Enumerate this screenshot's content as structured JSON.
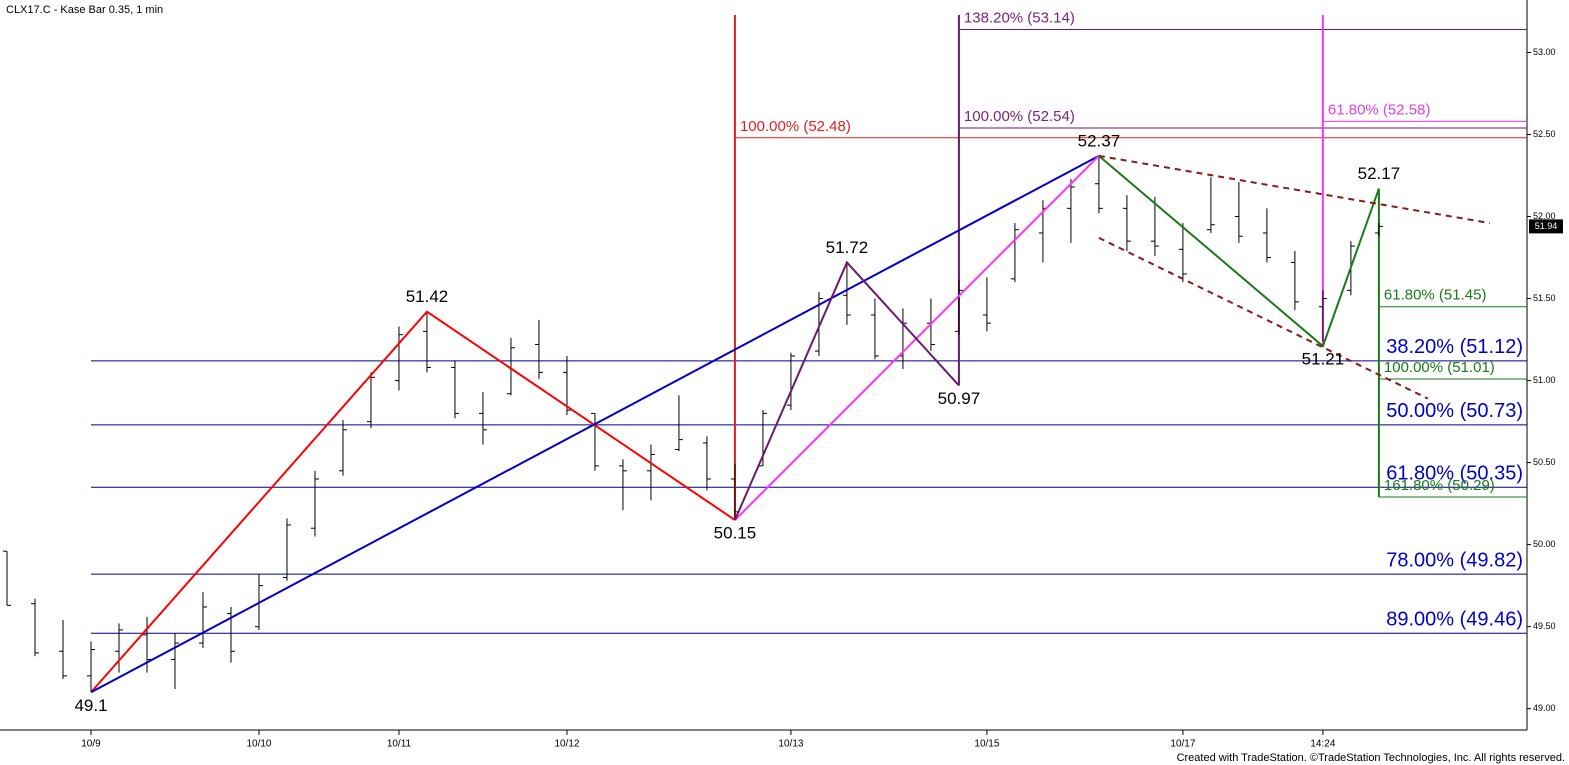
{
  "header": "CLX17.C - Kase Bar 0.35, 1 min",
  "footer": "Created with TradeStation. ©TradeStation Technologies, Inc. All rights reserved.",
  "chart_data": {
    "type": "ohlc",
    "xlim": [
      -0.25,
      54.29
    ],
    "ylim": [
      48.87,
      53.32
    ],
    "xticks": [
      {
        "value": 3,
        "label": "10/9"
      },
      {
        "value": 9,
        "label": "10/10"
      },
      {
        "value": 14,
        "label": "10/11"
      },
      {
        "value": 20,
        "label": "10/12"
      },
      {
        "value": 28,
        "label": "10/13"
      },
      {
        "value": 35,
        "label": "10/15"
      },
      {
        "value": 42,
        "label": "10/17"
      },
      {
        "value": 47,
        "label": "14:24"
      }
    ],
    "yticks": [
      {
        "value": 49,
        "label": "49.00"
      },
      {
        "value": 49.5,
        "label": "49.50"
      },
      {
        "value": 50,
        "label": "50.00"
      },
      {
        "value": 50.5,
        "label": "50.50"
      },
      {
        "value": 51,
        "label": "51.00"
      },
      {
        "value": 51.5,
        "label": "51.50"
      },
      {
        "value": 52,
        "label": "52.00"
      },
      {
        "value": 52.5,
        "label": "52.50"
      },
      {
        "value": 53,
        "label": "53.00"
      }
    ],
    "last": 51.94,
    "ohlc": {
      "x": [
        0,
        1,
        2,
        3,
        4,
        5,
        6,
        7,
        8,
        9,
        10,
        11,
        12,
        13,
        14,
        15,
        16,
        17,
        18,
        19,
        20,
        21,
        22,
        23,
        24,
        25,
        26,
        27,
        28,
        29,
        30,
        31,
        32,
        33,
        34,
        35,
        36,
        37,
        38,
        39,
        40,
        41,
        42,
        43,
        44,
        45,
        46,
        47,
        48,
        49
      ],
      "open": [
        49.96,
        49.64,
        49.35,
        49.2,
        49.35,
        49.45,
        49.3,
        49.4,
        49.58,
        49.5,
        49.8,
        50.1,
        50.45,
        50.75,
        51,
        51.3,
        51.08,
        50.8,
        50.92,
        51.22,
        51.05,
        50.8,
        50.48,
        50.45,
        50.58,
        50.62,
        50.4,
        50.48,
        50.85,
        51.18,
        51.52,
        51.4,
        51.15,
        51.35,
        51.3,
        51.4,
        51.62,
        51.9,
        52.05,
        52.2,
        52.05,
        51.85,
        51.8,
        51.92,
        52,
        51.9,
        51.72,
        51.45,
        51.55,
        51.9
      ],
      "high": [
        49.96,
        49.67,
        49.54,
        49.41,
        49.52,
        49.56,
        49.46,
        49.71,
        49.62,
        49.82,
        50.16,
        50.45,
        50.76,
        51.05,
        51.33,
        51.42,
        51.12,
        50.93,
        51.26,
        51.37,
        51.15,
        50.8,
        50.52,
        50.61,
        50.91,
        50.66,
        50.49,
        50.82,
        51.17,
        51.54,
        51.72,
        51.5,
        51.44,
        51.5,
        51.61,
        51.63,
        51.96,
        52.1,
        52.23,
        52.37,
        52.13,
        52.12,
        51.96,
        52.24,
        52.21,
        52.05,
        51.79,
        51.55,
        51.85,
        51.96
      ],
      "low": [
        49.63,
        49.32,
        49.18,
        49.1,
        49.22,
        49.22,
        49.12,
        49.37,
        49.28,
        49.48,
        49.78,
        50.05,
        50.42,
        50.71,
        50.94,
        51.05,
        50.77,
        50.61,
        50.91,
        51.01,
        50.79,
        50.45,
        50.21,
        50.27,
        50.57,
        50.33,
        50.15,
        50.48,
        50.82,
        51.15,
        51.34,
        51.13,
        51.07,
        51.18,
        51.28,
        51.3,
        51.6,
        51.72,
        51.84,
        52.02,
        51.79,
        51.76,
        51.6,
        51.9,
        51.84,
        51.72,
        51.43,
        51.24,
        51.52,
        51.88
      ],
      "close": [
        49.63,
        49.34,
        49.2,
        49.36,
        49.48,
        49.3,
        49.4,
        49.62,
        49.35,
        49.75,
        50.12,
        50.4,
        50.7,
        51.02,
        51.28,
        51.08,
        50.8,
        50.7,
        51.2,
        51.05,
        50.82,
        50.48,
        50.45,
        50.55,
        50.64,
        50.4,
        50.2,
        50.8,
        51.15,
        51.5,
        51.4,
        51.15,
        51.35,
        51.22,
        51.55,
        51.35,
        51.92,
        52.05,
        52.18,
        52.05,
        51.85,
        51.82,
        51.65,
        51.95,
        51.88,
        51.75,
        51.48,
        51.5,
        51.82,
        51.94
      ],
      "color": "#000000"
    },
    "lines": [
      {
        "color": "#ff0000",
        "x": [
          3,
          15,
          26
        ],
        "values": [
          49.1,
          51.42,
          50.15
        ]
      },
      {
        "color": "#0000cc",
        "x": [
          3,
          39
        ],
        "values": [
          49.1,
          52.37
        ]
      },
      {
        "color": "#ff33ff",
        "x": [
          26,
          39
        ],
        "values": [
          50.15,
          52.37
        ]
      },
      {
        "color": "#6b1a6b",
        "x": [
          26,
          30,
          34
        ],
        "values": [
          50.15,
          51.72,
          50.97
        ]
      },
      {
        "color": "#1a7a1a",
        "x": [
          39,
          47,
          49
        ],
        "values": [
          52.37,
          51.21,
          52.17
        ]
      },
      {
        "color": "#8b1a1a",
        "dashed": true,
        "x": [
          39,
          52.96
        ],
        "values": [
          52.37,
          51.96
        ]
      },
      {
        "color": "#8b1a1a",
        "dashed": true,
        "x": [
          39,
          50.75
        ],
        "values": [
          51.87,
          50.89
        ]
      }
    ],
    "pivots": [
      {
        "x": 3,
        "value": 49.1,
        "position": "below"
      },
      {
        "x": 15,
        "value": 51.42,
        "position": "above"
      },
      {
        "x": 26,
        "value": 50.15,
        "position": "below"
      },
      {
        "x": 30,
        "value": 51.72,
        "position": "above"
      },
      {
        "x": 34,
        "value": 50.97,
        "position": "below"
      },
      {
        "x": 39,
        "value": 52.37,
        "position": "above"
      },
      {
        "x": 47,
        "value": 51.21,
        "position": "below"
      },
      {
        "x": 49,
        "value": 52.17,
        "position": "above"
      }
    ],
    "fib_sets": [
      {
        "color": "#0000cc",
        "line_color": "#000080",
        "x": 3,
        "label_style": "large",
        "levels": [
          {
            "label": "38.20% (51.12)",
            "value": 51.12
          },
          {
            "label": "50.00% (50.73)",
            "value": 50.73
          },
          {
            "label": "61.80% (50.35)",
            "value": 50.35
          },
          {
            "label": "78.00% (49.82)",
            "value": 49.82
          },
          {
            "label": "89.00% (49.46)",
            "value": 49.46
          }
        ]
      },
      {
        "color": "#e02020",
        "line_color": "#e02020",
        "x": 26,
        "label_style": "small",
        "vertical": "up",
        "anchor": 50.15,
        "levels": [
          {
            "label": "100.00% (52.48)",
            "value": 52.48
          }
        ]
      },
      {
        "color": "#7b237b",
        "line_color": "#6b1a6b",
        "x": 34,
        "label_style": "small",
        "vertical": "up",
        "anchor": 50.97,
        "levels": [
          {
            "label": "100.00% (52.54)",
            "value": 52.54
          },
          {
            "label": "138.20% (53.14)",
            "value": 53.14
          }
        ]
      },
      {
        "color": "#e040e0",
        "line_color": "#ff33ff",
        "x": 47,
        "label_style": "small",
        "vertical": "up",
        "anchor": 51.21,
        "levels": [
          {
            "label": "61.80% (52.58)",
            "value": 52.58
          }
        ]
      },
      {
        "color": "#1a7a1a",
        "line_color": "#1a7a1a",
        "x": 49,
        "label_style": "small",
        "vertical": "down",
        "anchor": 52.17,
        "levels": [
          {
            "label": "61.80% (51.45)",
            "value": 51.45
          },
          {
            "label": "100.00% (51.01)",
            "value": 51.01
          },
          {
            "label": "161.80% (50.29)",
            "value": 50.29
          }
        ]
      }
    ]
  }
}
